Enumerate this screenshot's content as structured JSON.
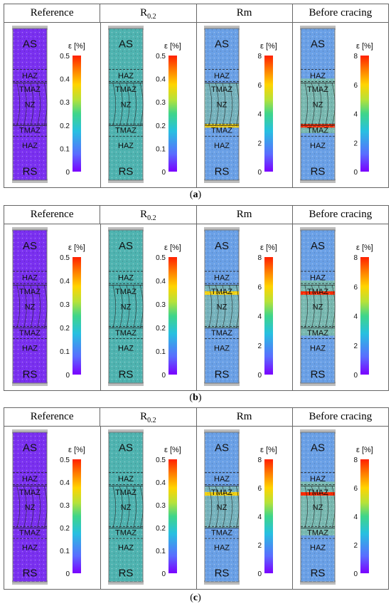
{
  "column_headers": [
    "Reference",
    "R",
    "Rm",
    "Before cracing"
  ],
  "r_subscript": "0.2",
  "colorbar_title": "ε [%]",
  "panels": [
    {
      "label": "a",
      "scales": [
        [
          "0.5",
          "0.4",
          "0.3",
          "0.2",
          "0.1",
          "0"
        ],
        [
          "0.5",
          "0.4",
          "0.3",
          "0.2",
          "0.1",
          "0"
        ],
        [
          "8",
          "6",
          "4",
          "2",
          "0"
        ],
        [
          "8",
          "6",
          "4",
          "2",
          "0"
        ]
      ],
      "specimen_zones": [
        [
          "AS",
          "HAZ",
          "TMAZ",
          "NZ",
          "TMAZ",
          "HAZ",
          "RS"
        ],
        [
          "AS",
          "HAZ",
          "TMAZ",
          "NZ",
          "TMAZ",
          "HAZ",
          "RS"
        ],
        [
          "AS",
          "HAZ",
          "TMAZ",
          "NZ",
          "TMAZ",
          "HAZ",
          "RS"
        ],
        [
          "AS",
          "HAZ",
          "TMAZ",
          "NZ",
          "TMAZ",
          "HAZ",
          "RS"
        ]
      ]
    },
    {
      "label": "b",
      "scales": [
        [
          "0.5",
          "0.4",
          "0.3",
          "0.2",
          "0.1",
          "0"
        ],
        [
          "0.5",
          "0.4",
          "0.3",
          "0.2",
          "0.1",
          "0"
        ],
        [
          "8",
          "6",
          "4",
          "2",
          "0"
        ],
        [
          "8",
          "6",
          "4",
          "2",
          "0"
        ]
      ],
      "specimen_zones": [
        [
          "AS",
          "HAZ",
          "TMAZ",
          "NZ",
          "TMAZ",
          "HAZ",
          "RS"
        ],
        [
          "AS",
          "HAZ",
          "TMAZ",
          "NZ",
          "TMAZ",
          "HAZ",
          "RS"
        ],
        [
          "AS",
          "HAZ",
          "TMAZ",
          "NZ",
          "TMAZ",
          "HAZ",
          "RS"
        ],
        [
          "AS",
          "HAZ",
          "TMAZ",
          "NZ",
          "TMAZ",
          "HAZ",
          "RS"
        ]
      ]
    },
    {
      "label": "c",
      "scales": [
        [
          "0.5",
          "0.4",
          "0.3",
          "0.2",
          "0.1",
          "0"
        ],
        [
          "0.5",
          "0.4",
          "0.3",
          "0.2",
          "0.1",
          "0"
        ],
        [
          "8",
          "6",
          "4",
          "2",
          "0"
        ],
        [
          "8",
          "6",
          "4",
          "2",
          "0"
        ]
      ],
      "specimen_zones": [
        [
          "AS",
          "HAZ",
          "TMAZ",
          "NZ",
          "TMAZ",
          "HAZ",
          "RS"
        ],
        [
          "AS",
          "HAZ",
          "TMAZ",
          "NZ",
          "TMAZ",
          "HAZ",
          "RS"
        ],
        [
          "AS",
          "HAZ",
          "TMAZ",
          "NZ",
          "TMAZ",
          "HAZ",
          "RS"
        ],
        [
          "AS",
          "HAZ",
          "TMAZ",
          "NZ",
          "TMAZ",
          "HAZ",
          "RS"
        ]
      ]
    }
  ],
  "colors": {
    "purple": "#7a30f0",
    "teal": "#4fb3b0",
    "blue": "#6aa0e6",
    "green": "#8cd870",
    "yellow": "#ffd400",
    "red": "#ff2a00",
    "speckle": "#9a9a9a"
  }
}
